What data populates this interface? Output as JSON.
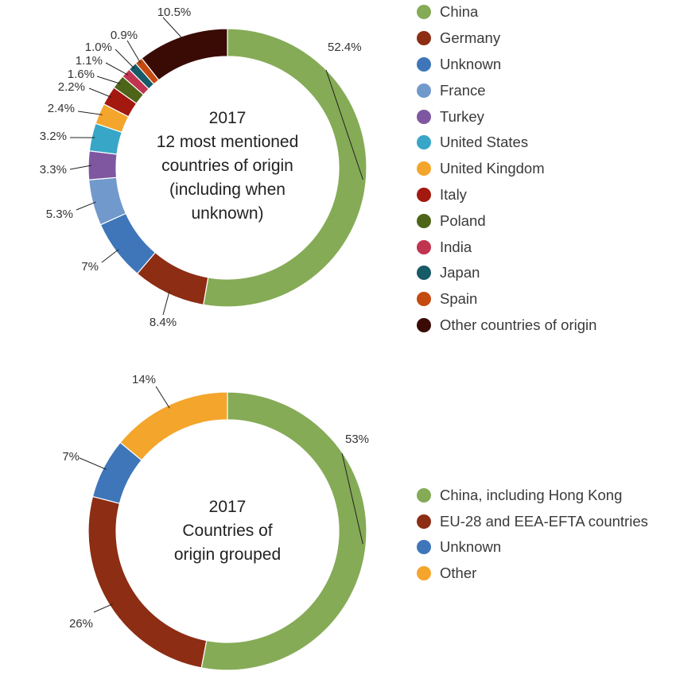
{
  "chart_data": [
    {
      "type": "pie",
      "subtype": "donut",
      "title_lines": [
        "2017",
        "12 most mentioned",
        "countries of origin",
        "(including when",
        "unknown)"
      ],
      "legend_position": "right",
      "slices": [
        {
          "name": "China",
          "value": 52.4,
          "label": "52.4%",
          "color": "#85ab56"
        },
        {
          "name": "Germany",
          "value": 8.4,
          "label": "8.4%",
          "color": "#8c2d14"
        },
        {
          "name": "Unknown",
          "value": 7.0,
          "label": "7%",
          "color": "#3e76b9"
        },
        {
          "name": "France",
          "value": 5.3,
          "label": "5.3%",
          "color": "#7199cc"
        },
        {
          "name": "Turkey",
          "value": 3.3,
          "label": "3.3%",
          "color": "#7f57a1"
        },
        {
          "name": "United States",
          "value": 3.2,
          "label": "3.2%",
          "color": "#37a6c7"
        },
        {
          "name": "United Kingdom",
          "value": 2.4,
          "label": "2.4%",
          "color": "#f4a52b"
        },
        {
          "name": "Italy",
          "value": 2.2,
          "label": "2.2%",
          "color": "#a3190f"
        },
        {
          "name": "Poland",
          "value": 1.6,
          "label": "1.6%",
          "color": "#4e6418"
        },
        {
          "name": "India",
          "value": 1.1,
          "label": "1.1%",
          "color": "#c13450"
        },
        {
          "name": "Japan",
          "value": 1.0,
          "label": "1.0%",
          "color": "#175a68"
        },
        {
          "name": "Spain",
          "value": 0.9,
          "label": "0.9%",
          "color": "#c54a0f"
        },
        {
          "name": "Other countries of origin",
          "value": 10.5,
          "label": "10.5%",
          "color": "#3a0b05"
        }
      ]
    },
    {
      "type": "pie",
      "subtype": "donut",
      "title_lines": [
        "2017",
        "Countries of",
        "origin grouped"
      ],
      "legend_position": "right",
      "slices": [
        {
          "name": "China, including Hong Kong",
          "value": 53,
          "label": "53%",
          "color": "#85ab56"
        },
        {
          "name": "EU-28 and EEA-EFTA countries",
          "value": 26,
          "label": "26%",
          "color": "#8c2d14"
        },
        {
          "name": "Unknown",
          "value": 7,
          "label": "7%",
          "color": "#3e76b9"
        },
        {
          "name": "Other",
          "value": 14,
          "label": "14%",
          "color": "#f4a52b"
        }
      ]
    }
  ]
}
